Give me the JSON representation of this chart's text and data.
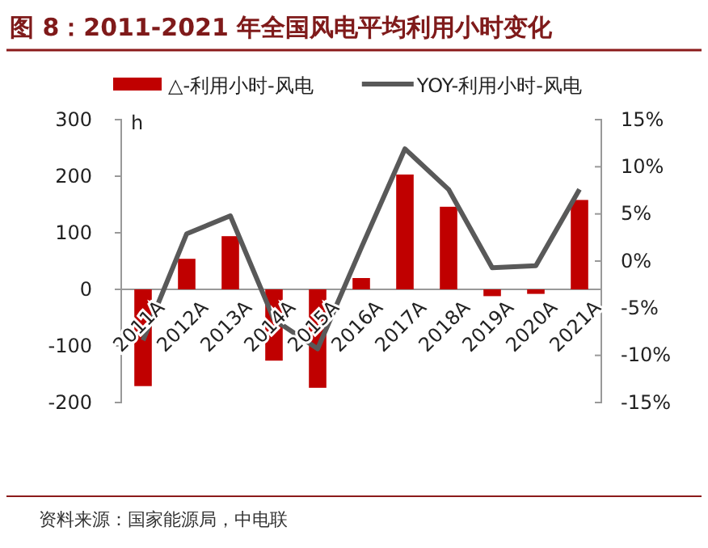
{
  "chart_data": {
    "type": "bar",
    "title": "图 8：2011-2021 年全国风电平均利用小时变化",
    "ylabel": "h",
    "categories": [
      "2011A",
      "2012A",
      "2013A",
      "2014A",
      "2015A",
      "2016A",
      "2017A",
      "2018A",
      "2019A",
      "2020A",
      "2021A"
    ],
    "series": [
      {
        "name": "△-利用小时-风电",
        "color": "#c00000",
        "values": [
          -171,
          54,
          94,
          -126,
          -174,
          20,
          203,
          146,
          -12,
          -8,
          158
        ]
      },
      {
        "name": "YOY-利用小时-风电",
        "type": "line",
        "axis": "y2",
        "color": "#595959",
        "values": [
          -8.4,
          2.9,
          4.8,
          -6.2,
          -9.3,
          1.4,
          11.9,
          7.6,
          -0.7,
          -0.5,
          7.6
        ]
      }
    ],
    "ylim": [
      -200,
      300
    ],
    "yticks": [
      -200,
      -100,
      0,
      100,
      200,
      300
    ],
    "y2lim": [
      -15,
      15
    ],
    "y2ticks": [
      {
        "value": -15,
        "label": "-15%"
      },
      {
        "value": -10,
        "label": "-10%"
      },
      {
        "value": -5,
        "label": "-5%"
      },
      {
        "value": 0,
        "label": "0%"
      },
      {
        "value": 5,
        "label": "5%"
      },
      {
        "value": 10,
        "label": "10%"
      },
      {
        "value": 15,
        "label": "15%"
      }
    ],
    "legend": "top",
    "grid": false,
    "marker": "none",
    "line_style": "solid",
    "annotations": [
      "资料来源：国家能源局，中电联"
    ]
  }
}
